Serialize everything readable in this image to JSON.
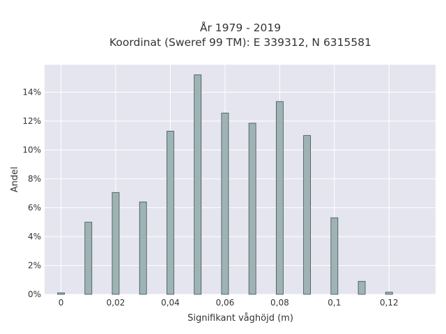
{
  "chart_data": {
    "type": "bar",
    "title_line1": "År 1979 - 2019",
    "title_line2": "Koordinat (Sweref 99 TM): E 339312, N 6315581",
    "xlabel": "Signifikant våghöjd (m)",
    "ylabel": "Andel",
    "x": [
      0,
      0.01,
      0.02,
      0.03,
      0.04,
      0.05,
      0.06,
      0.07,
      0.08,
      0.09,
      0.1,
      0.11,
      0.12
    ],
    "values": [
      0.1,
      5.0,
      7.05,
      6.4,
      11.3,
      15.2,
      12.55,
      11.85,
      13.35,
      11.0,
      5.3,
      0.9,
      0.15
    ],
    "xlim": [
      -0.006,
      0.137
    ],
    "ylim": [
      0,
      15.9
    ],
    "x_ticks": [
      0,
      0.02,
      0.04,
      0.06,
      0.08,
      0.1,
      0.12
    ],
    "x_tick_labels": [
      "0",
      "0,02",
      "0,04",
      "0,06",
      "0,08",
      "0,1",
      "0,12"
    ],
    "y_ticks": [
      0,
      2,
      4,
      6,
      8,
      10,
      12,
      14
    ],
    "y_tick_labels": [
      "0%",
      "2%",
      "4%",
      "6%",
      "8%",
      "10%",
      "12%",
      "14%"
    ],
    "grid": true,
    "colors": {
      "plot_background": "#e5e5ef",
      "bar_fill": "#9eb4b4",
      "bar_stroke": "#3d4f4f",
      "grid": "#ffffff"
    }
  }
}
